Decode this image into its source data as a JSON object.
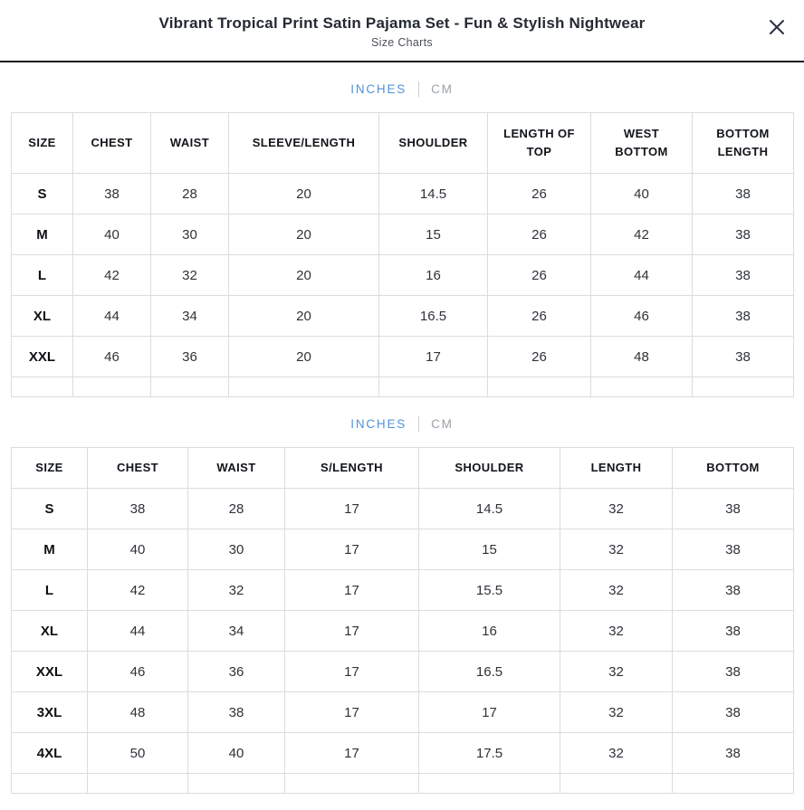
{
  "header": {
    "title": "Vibrant Tropical Print Satin Pajama Set - Fun & Stylish Nightwear",
    "subtitle": "Size Charts"
  },
  "colors": {
    "accent": "#4f93d9",
    "inactive_tab": "#9ba1a8",
    "header_rule": "#15181d",
    "table_border": "#dcdcdc"
  },
  "unit_tabs": {
    "inches_label": "INCHES",
    "cm_label": "CM"
  },
  "chart_data": [
    {
      "type": "table",
      "title": "Top size chart (inches)",
      "columns": [
        "SIZE",
        "CHEST",
        "WAIST",
        "SLEEVE/LENGTH",
        "SHOULDER",
        "LENGTH OF TOP",
        "WEST BOTTOM",
        "BOTTOM LENGTH"
      ],
      "rows": [
        [
          "S",
          "38",
          "28",
          "20",
          "14.5",
          "26",
          "40",
          "38"
        ],
        [
          "M",
          "40",
          "30",
          "20",
          "15",
          "26",
          "42",
          "38"
        ],
        [
          "L",
          "42",
          "32",
          "20",
          "16",
          "26",
          "44",
          "38"
        ],
        [
          "XL",
          "44",
          "34",
          "20",
          "16.5",
          "26",
          "46",
          "38"
        ],
        [
          "XXL",
          "46",
          "36",
          "20",
          "17",
          "26",
          "48",
          "38"
        ]
      ]
    },
    {
      "type": "table",
      "title": "Bottom size chart (inches)",
      "columns": [
        "SIZE",
        "CHEST",
        "WAIST",
        "S/LENGTH",
        "SHOULDER",
        "LENGTH",
        "BOTTOM"
      ],
      "rows": [
        [
          "S",
          "38",
          "28",
          "17",
          "14.5",
          "32",
          "38"
        ],
        [
          "M",
          "40",
          "30",
          "17",
          "15",
          "32",
          "38"
        ],
        [
          "L",
          "42",
          "32",
          "17",
          "15.5",
          "32",
          "38"
        ],
        [
          "XL",
          "44",
          "34",
          "17",
          "16",
          "32",
          "38"
        ],
        [
          "XXL",
          "46",
          "36",
          "17",
          "16.5",
          "32",
          "38"
        ],
        [
          "3XL",
          "48",
          "38",
          "17",
          "17",
          "32",
          "38"
        ],
        [
          "4XL",
          "50",
          "40",
          "17",
          "17.5",
          "32",
          "38"
        ]
      ]
    }
  ]
}
